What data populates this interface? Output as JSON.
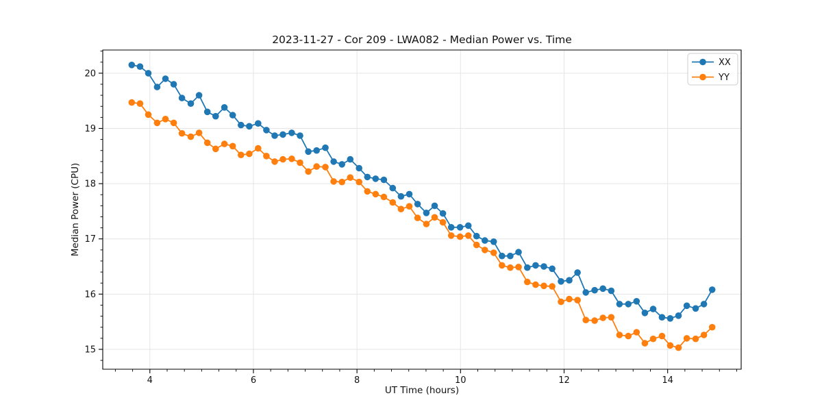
{
  "chart_data": {
    "type": "line",
    "title": "2023-11-27 - Cor 209 - LWA082 - Median Power vs. Time",
    "xlabel": "UT Time (hours)",
    "ylabel": "Median Power (CPU)",
    "xlim": [
      3.09,
      15.42
    ],
    "ylim": [
      14.64,
      20.42
    ],
    "x_ticks": [
      4,
      6,
      8,
      10,
      12,
      14
    ],
    "y_ticks": [
      15,
      16,
      17,
      18,
      19,
      20
    ],
    "x_minor_step": 0.3333,
    "y_minor_step": 0.2,
    "grid": true,
    "grid_color": "#e5e5e5",
    "legend_position": "upper right",
    "marker": "circle",
    "series": [
      {
        "name": "XX",
        "color": "#1f77b4",
        "x": [
          3.65,
          3.81,
          3.97,
          4.14,
          4.3,
          4.46,
          4.62,
          4.79,
          4.95,
          5.11,
          5.27,
          5.44,
          5.6,
          5.76,
          5.92,
          6.09,
          6.25,
          6.41,
          6.57,
          6.74,
          6.9,
          7.06,
          7.22,
          7.39,
          7.55,
          7.71,
          7.87,
          8.04,
          8.2,
          8.36,
          8.52,
          8.69,
          8.85,
          9.01,
          9.17,
          9.34,
          9.5,
          9.66,
          9.82,
          9.99,
          10.15,
          10.31,
          10.47,
          10.64,
          10.8,
          10.96,
          11.12,
          11.29,
          11.45,
          11.61,
          11.77,
          11.94,
          12.1,
          12.26,
          12.42,
          12.59,
          12.75,
          12.91,
          13.07,
          13.24,
          13.4,
          13.56,
          13.72,
          13.89,
          14.05,
          14.21,
          14.37,
          14.54,
          14.7,
          14.86
        ],
        "y": [
          20.15,
          20.12,
          20.0,
          19.75,
          19.9,
          19.8,
          19.55,
          19.45,
          19.6,
          19.3,
          19.22,
          19.38,
          19.24,
          19.06,
          19.04,
          19.09,
          18.97,
          18.87,
          18.89,
          18.92,
          18.87,
          18.58,
          18.6,
          18.65,
          18.4,
          18.35,
          18.44,
          18.28,
          18.12,
          18.09,
          18.07,
          17.92,
          17.77,
          17.81,
          17.63,
          17.47,
          17.6,
          17.46,
          17.21,
          17.21,
          17.24,
          17.05,
          16.97,
          16.95,
          16.69,
          16.69,
          16.76,
          16.48,
          16.52,
          16.5,
          16.46,
          16.23,
          16.25,
          16.39,
          16.03,
          16.07,
          16.1,
          16.06,
          15.82,
          15.82,
          15.87,
          15.66,
          15.73,
          15.58,
          15.56,
          15.61,
          15.79,
          15.74,
          15.82,
          16.08
        ]
      },
      {
        "name": "YY",
        "color": "#ff7f0e",
        "x": [
          3.65,
          3.81,
          3.97,
          4.14,
          4.3,
          4.46,
          4.62,
          4.79,
          4.95,
          5.11,
          5.27,
          5.44,
          5.6,
          5.76,
          5.92,
          6.09,
          6.25,
          6.41,
          6.57,
          6.74,
          6.9,
          7.06,
          7.22,
          7.39,
          7.55,
          7.71,
          7.87,
          8.04,
          8.2,
          8.36,
          8.52,
          8.69,
          8.85,
          9.01,
          9.17,
          9.34,
          9.5,
          9.66,
          9.82,
          9.99,
          10.15,
          10.31,
          10.47,
          10.64,
          10.8,
          10.96,
          11.12,
          11.29,
          11.45,
          11.61,
          11.77,
          11.94,
          12.1,
          12.26,
          12.42,
          12.59,
          12.75,
          12.91,
          13.07,
          13.24,
          13.4,
          13.56,
          13.72,
          13.89,
          14.05,
          14.21,
          14.37,
          14.54,
          14.7,
          14.86
        ],
        "y": [
          19.47,
          19.45,
          19.25,
          19.1,
          19.17,
          19.1,
          18.91,
          18.85,
          18.92,
          18.74,
          18.63,
          18.72,
          18.68,
          18.52,
          18.54,
          18.64,
          18.5,
          18.4,
          18.44,
          18.45,
          18.38,
          18.22,
          18.31,
          18.3,
          18.04,
          18.03,
          18.11,
          18.03,
          17.86,
          17.81,
          17.76,
          17.66,
          17.54,
          17.59,
          17.38,
          17.27,
          17.39,
          17.3,
          17.06,
          17.04,
          17.06,
          16.89,
          16.8,
          16.75,
          16.52,
          16.48,
          16.49,
          16.22,
          16.17,
          16.15,
          16.14,
          15.86,
          15.91,
          15.89,
          15.53,
          15.52,
          15.57,
          15.58,
          15.26,
          15.24,
          15.31,
          15.11,
          15.19,
          15.24,
          15.07,
          15.03,
          15.2,
          15.19,
          15.26,
          15.4
        ]
      }
    ]
  }
}
